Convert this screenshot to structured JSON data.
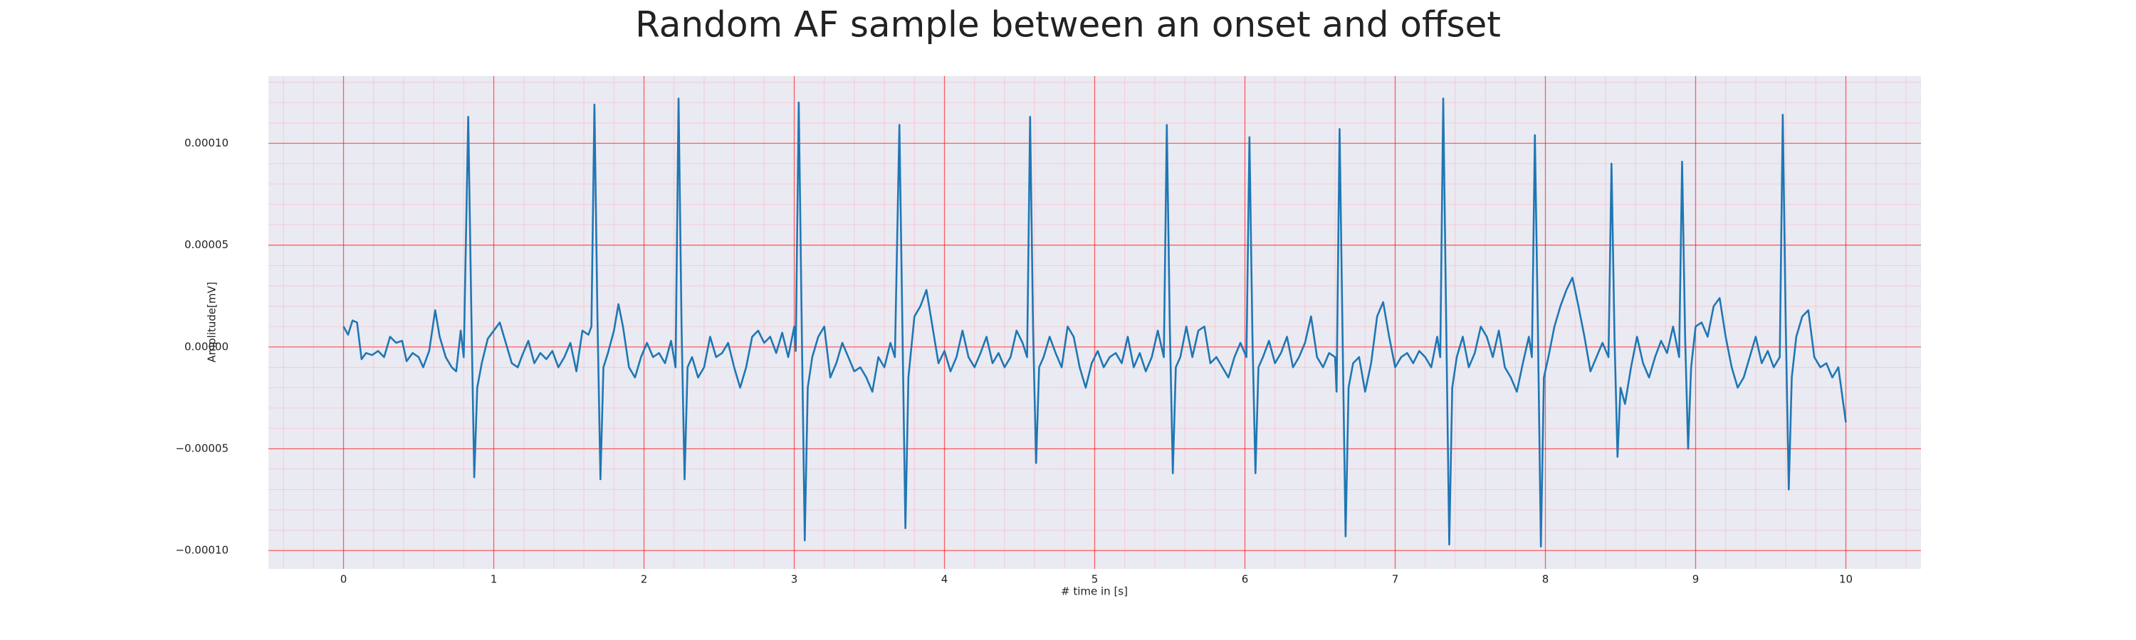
{
  "chart_data": {
    "type": "line",
    "title": "Random AF sample between an onset and offset",
    "xlabel": "# time in [s]",
    "ylabel": "Amplitude[mV]",
    "color": "#1f77b4",
    "grid": true,
    "minor_grid": true,
    "xlim": [
      -0.5,
      10.5
    ],
    "xticks": [
      0,
      1,
      2,
      3,
      4,
      5,
      6,
      7,
      8,
      9,
      10
    ],
    "ylim": [
      -0.000109,
      0.000133
    ],
    "yticks": [
      {
        "value": -0.0001,
        "label": "−0.00010"
      },
      {
        "value": -5e-05,
        "label": "−0.00005"
      },
      {
        "value": 0,
        "label": "0.00000"
      },
      {
        "value": 5e-05,
        "label": "0.00005"
      },
      {
        "value": 0.0001,
        "label": "0.00010"
      }
    ],
    "x": [
      0.0,
      0.03,
      0.06,
      0.09,
      0.12,
      0.15,
      0.19,
      0.23,
      0.27,
      0.31,
      0.35,
      0.39,
      0.42,
      0.46,
      0.5,
      0.53,
      0.57,
      0.61,
      0.64,
      0.68,
      0.72,
      0.75,
      0.78,
      0.8,
      0.83,
      0.85,
      0.87,
      0.89,
      0.92,
      0.96,
      1.0,
      1.04,
      1.08,
      1.12,
      1.16,
      1.19,
      1.23,
      1.27,
      1.31,
      1.35,
      1.39,
      1.43,
      1.47,
      1.51,
      1.55,
      1.59,
      1.63,
      1.65,
      1.67,
      1.69,
      1.71,
      1.73,
      1.76,
      1.8,
      1.83,
      1.86,
      1.9,
      1.94,
      1.98,
      2.02,
      2.06,
      2.1,
      2.14,
      2.18,
      2.21,
      2.23,
      2.25,
      2.27,
      2.29,
      2.32,
      2.36,
      2.4,
      2.44,
      2.48,
      2.52,
      2.56,
      2.6,
      2.64,
      2.68,
      2.72,
      2.76,
      2.8,
      2.84,
      2.88,
      2.92,
      2.96,
      3.0,
      3.01,
      3.03,
      3.05,
      3.07,
      3.09,
      3.12,
      3.16,
      3.2,
      3.24,
      3.28,
      3.32,
      3.36,
      3.4,
      3.44,
      3.48,
      3.52,
      3.56,
      3.6,
      3.64,
      3.67,
      3.7,
      3.72,
      3.74,
      3.76,
      3.8,
      3.84,
      3.88,
      3.92,
      3.96,
      4.0,
      4.04,
      4.08,
      4.12,
      4.16,
      4.2,
      4.24,
      4.28,
      4.32,
      4.36,
      4.4,
      4.44,
      4.48,
      4.52,
      4.55,
      4.57,
      4.59,
      4.61,
      4.63,
      4.66,
      4.7,
      4.74,
      4.78,
      4.82,
      4.86,
      4.9,
      4.94,
      4.98,
      5.02,
      5.06,
      5.1,
      5.14,
      5.18,
      5.22,
      5.26,
      5.3,
      5.34,
      5.38,
      5.42,
      5.46,
      5.48,
      5.5,
      5.52,
      5.54,
      5.57,
      5.61,
      5.65,
      5.69,
      5.73,
      5.77,
      5.81,
      5.85,
      5.89,
      5.93,
      5.97,
      6.01,
      6.03,
      6.05,
      6.07,
      6.09,
      6.12,
      6.16,
      6.2,
      6.24,
      6.28,
      6.32,
      6.36,
      6.4,
      6.44,
      6.48,
      6.52,
      6.56,
      6.6,
      6.61,
      6.63,
      6.65,
      6.67,
      6.69,
      6.72,
      6.76,
      6.8,
      6.84,
      6.88,
      6.92,
      6.96,
      7.0,
      7.04,
      7.08,
      7.12,
      7.16,
      7.2,
      7.24,
      7.28,
      7.3,
      7.32,
      7.34,
      7.36,
      7.38,
      7.41,
      7.45,
      7.49,
      7.53,
      7.57,
      7.61,
      7.65,
      7.69,
      7.73,
      7.77,
      7.81,
      7.85,
      7.89,
      7.91,
      7.93,
      7.95,
      7.97,
      7.99,
      8.02,
      8.06,
      8.1,
      8.14,
      8.18,
      8.22,
      8.26,
      8.3,
      8.34,
      8.38,
      8.42,
      8.44,
      8.46,
      8.48,
      8.5,
      8.53,
      8.57,
      8.61,
      8.65,
      8.69,
      8.73,
      8.77,
      8.81,
      8.85,
      8.89,
      8.91,
      8.93,
      8.95,
      8.97,
      9.0,
      9.04,
      9.08,
      9.12,
      9.16,
      9.2,
      9.24,
      9.28,
      9.32,
      9.36,
      9.4,
      9.44,
      9.48,
      9.52,
      9.56,
      9.58,
      9.6,
      9.62,
      9.64,
      9.67,
      9.71,
      9.75,
      9.79,
      9.83,
      9.87,
      9.91,
      9.95,
      10.0
    ],
    "values": [
      1e-05,
      6e-06,
      1.3e-05,
      1.2e-05,
      -6e-06,
      -3e-06,
      -4e-06,
      -2e-06,
      -5e-06,
      5e-06,
      2e-06,
      3e-06,
      -7e-06,
      -3e-06,
      -5e-06,
      -1e-05,
      -2e-06,
      1.8e-05,
      5e-06,
      -5e-06,
      -1e-05,
      -1.2e-05,
      8e-06,
      -5e-06,
      0.000113,
      2e-05,
      -6.4e-05,
      -2e-05,
      -8e-06,
      4e-06,
      8e-06,
      1.2e-05,
      2e-06,
      -8e-06,
      -1e-05,
      -4e-06,
      3e-06,
      -8e-06,
      -3e-06,
      -6e-06,
      -2e-06,
      -1e-05,
      -5e-06,
      2e-06,
      -1.2e-05,
      8e-06,
      6e-06,
      1e-05,
      0.000119,
      1.5e-05,
      -6.5e-05,
      -1e-05,
      -3e-06,
      8e-06,
      2.1e-05,
      1e-05,
      -1e-05,
      -1.5e-05,
      -5e-06,
      2e-06,
      -5e-06,
      -3e-06,
      -8e-06,
      3e-06,
      -1e-05,
      0.000122,
      1e-05,
      -6.5e-05,
      -1e-05,
      -5e-06,
      -1.5e-05,
      -1e-05,
      5e-06,
      -5e-06,
      -3e-06,
      2e-06,
      -1e-05,
      -2e-05,
      -1e-05,
      5e-06,
      8e-06,
      2e-06,
      5e-06,
      -3e-06,
      7e-06,
      -5e-06,
      1e-05,
      -2e-06,
      0.00012,
      1e-05,
      -9.5e-05,
      -2e-05,
      -5e-06,
      5e-06,
      1e-05,
      -1.5e-05,
      -8e-06,
      2e-06,
      -5e-06,
      -1.2e-05,
      -1e-05,
      -1.5e-05,
      -2.2e-05,
      -5e-06,
      -1e-05,
      2e-06,
      -5e-06,
      0.000109,
      1e-05,
      -8.9e-05,
      -1.5e-05,
      1.5e-05,
      2e-05,
      2.8e-05,
      1e-05,
      -8e-06,
      -2e-06,
      -1.2e-05,
      -5e-06,
      8e-06,
      -5e-06,
      -1e-05,
      -3e-06,
      5e-06,
      -8e-06,
      -3e-06,
      -1e-05,
      -5e-06,
      8e-06,
      2e-06,
      -5e-06,
      0.000113,
      8e-06,
      -5.7e-05,
      -1e-05,
      -5e-06,
      5e-06,
      -3e-06,
      -1e-05,
      1e-05,
      5e-06,
      -1e-05,
      -2e-05,
      -8e-06,
      -2e-06,
      -1e-05,
      -5e-06,
      -3e-06,
      -8e-06,
      5e-06,
      -1e-05,
      -3e-06,
      -1.2e-05,
      -5e-06,
      8e-06,
      -5e-06,
      0.000109,
      1e-05,
      -6.2e-05,
      -1e-05,
      -5e-06,
      1e-05,
      -5e-06,
      8e-06,
      1e-05,
      -8e-06,
      -5e-06,
      -1e-05,
      -1.5e-05,
      -5e-06,
      2e-06,
      -5e-06,
      0.000103,
      5e-06,
      -6.2e-05,
      -1e-05,
      -5e-06,
      3e-06,
      -8e-06,
      -3e-06,
      5e-06,
      -1e-05,
      -5e-06,
      2e-06,
      1.5e-05,
      -5e-06,
      -1e-05,
      -3e-06,
      -5e-06,
      -2.2e-05,
      0.000107,
      5e-06,
      -9.3e-05,
      -2e-05,
      -8e-06,
      -5e-06,
      -2.2e-05,
      -8e-06,
      1.5e-05,
      2.2e-05,
      5e-06,
      -1e-05,
      -5e-06,
      -3e-06,
      -8e-06,
      -2e-06,
      -5e-06,
      -1e-05,
      5e-06,
      -5e-06,
      0.000122,
      1e-05,
      -9.7e-05,
      -2e-05,
      -5e-06,
      5e-06,
      -1e-05,
      -3e-06,
      1e-05,
      5e-06,
      -5e-06,
      8e-06,
      -1e-05,
      -1.5e-05,
      -2.2e-05,
      -8e-06,
      5e-06,
      -5e-06,
      0.000104,
      1e-05,
      -9.8e-05,
      -1.5e-05,
      -5e-06,
      1e-05,
      2e-05,
      2.8e-05,
      3.4e-05,
      2e-05,
      5e-06,
      -1.2e-05,
      -5e-06,
      2e-06,
      -5e-06,
      9e-05,
      5e-06,
      -5.4e-05,
      -2e-05,
      -2.8e-05,
      -1e-05,
      5e-06,
      -8e-06,
      -1.5e-05,
      -5e-06,
      3e-06,
      -3e-06,
      1e-05,
      -5e-06,
      9.1e-05,
      5e-06,
      -5e-05,
      -1e-05,
      1e-05,
      1.2e-05,
      5e-06,
      2e-05,
      2.4e-05,
      5e-06,
      -1e-05,
      -2e-05,
      -1.5e-05,
      -5e-06,
      5e-06,
      -8e-06,
      -2e-06,
      -1e-05,
      -5e-06,
      0.000114,
      1e-05,
      -7e-05,
      -1.5e-05,
      5e-06,
      1.5e-05,
      1.8e-05,
      -5e-06,
      -1e-05,
      -8e-06,
      -1.5e-05,
      -1e-05,
      -3.7e-05
    ]
  }
}
